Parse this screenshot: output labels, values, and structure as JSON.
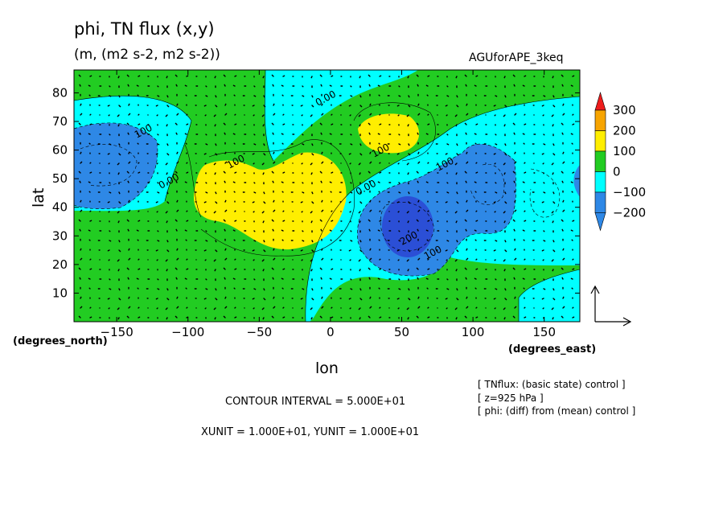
{
  "title": "phi, TN flux (x,y)",
  "subtitle": "(m, (m2 s-2, m2 s-2))",
  "run_label": "AGUforAPE_3keq",
  "colors": {
    "c_m250": "#2b4fd6",
    "c_m200": "#2e88e6",
    "c_m100": "#00ffff",
    "c_0": "#22cc22",
    "c_100": "#ffee00",
    "c_200": "#f7a400",
    "c_300": "#ee1c1c"
  },
  "chart_data": {
    "type": "heatmap",
    "xlabel": "lon",
    "ylabel": "lat",
    "x_unit_label": "(degrees_east)",
    "y_unit_label": "(degrees_north)",
    "xlim": [
      -180,
      175
    ],
    "ylim": [
      0,
      88
    ],
    "xticks": [
      -150,
      -100,
      -50,
      0,
      50,
      100,
      150
    ],
    "yticks": [
      10,
      20,
      30,
      40,
      50,
      60,
      70,
      80
    ],
    "colorbar_levels": [
      300,
      200,
      100,
      0,
      -100,
      -200
    ],
    "contour_labels": [
      "0.00",
      "0.00",
      "0.00",
      "100",
      "100",
      "100",
      "100",
      "100",
      "200"
    ],
    "anomaly_centers": [
      {
        "lon": -145,
        "lat": 57,
        "value": -150
      },
      {
        "lon": -40,
        "lat": 45,
        "value": 150
      },
      {
        "lon": 42,
        "lat": 65,
        "value": 120
      },
      {
        "lon": 50,
        "lat": 33,
        "value": -260
      },
      {
        "lon": 110,
        "lat": 52,
        "value": -160
      },
      {
        "lon": 175,
        "lat": 50,
        "value": -110
      }
    ],
    "grid": false
  },
  "footer": {
    "contour_interval": "CONTOUR INTERVAL = 5.000E+01",
    "units": "XUNIT = 1.000E+01, YUNIT = 1.000E+01"
  },
  "info_lines": [
    "[ TNflux: (basic state) control ]",
    "[ z=925 hPa ]",
    "[ phi: (diff) from (mean) control ]"
  ]
}
